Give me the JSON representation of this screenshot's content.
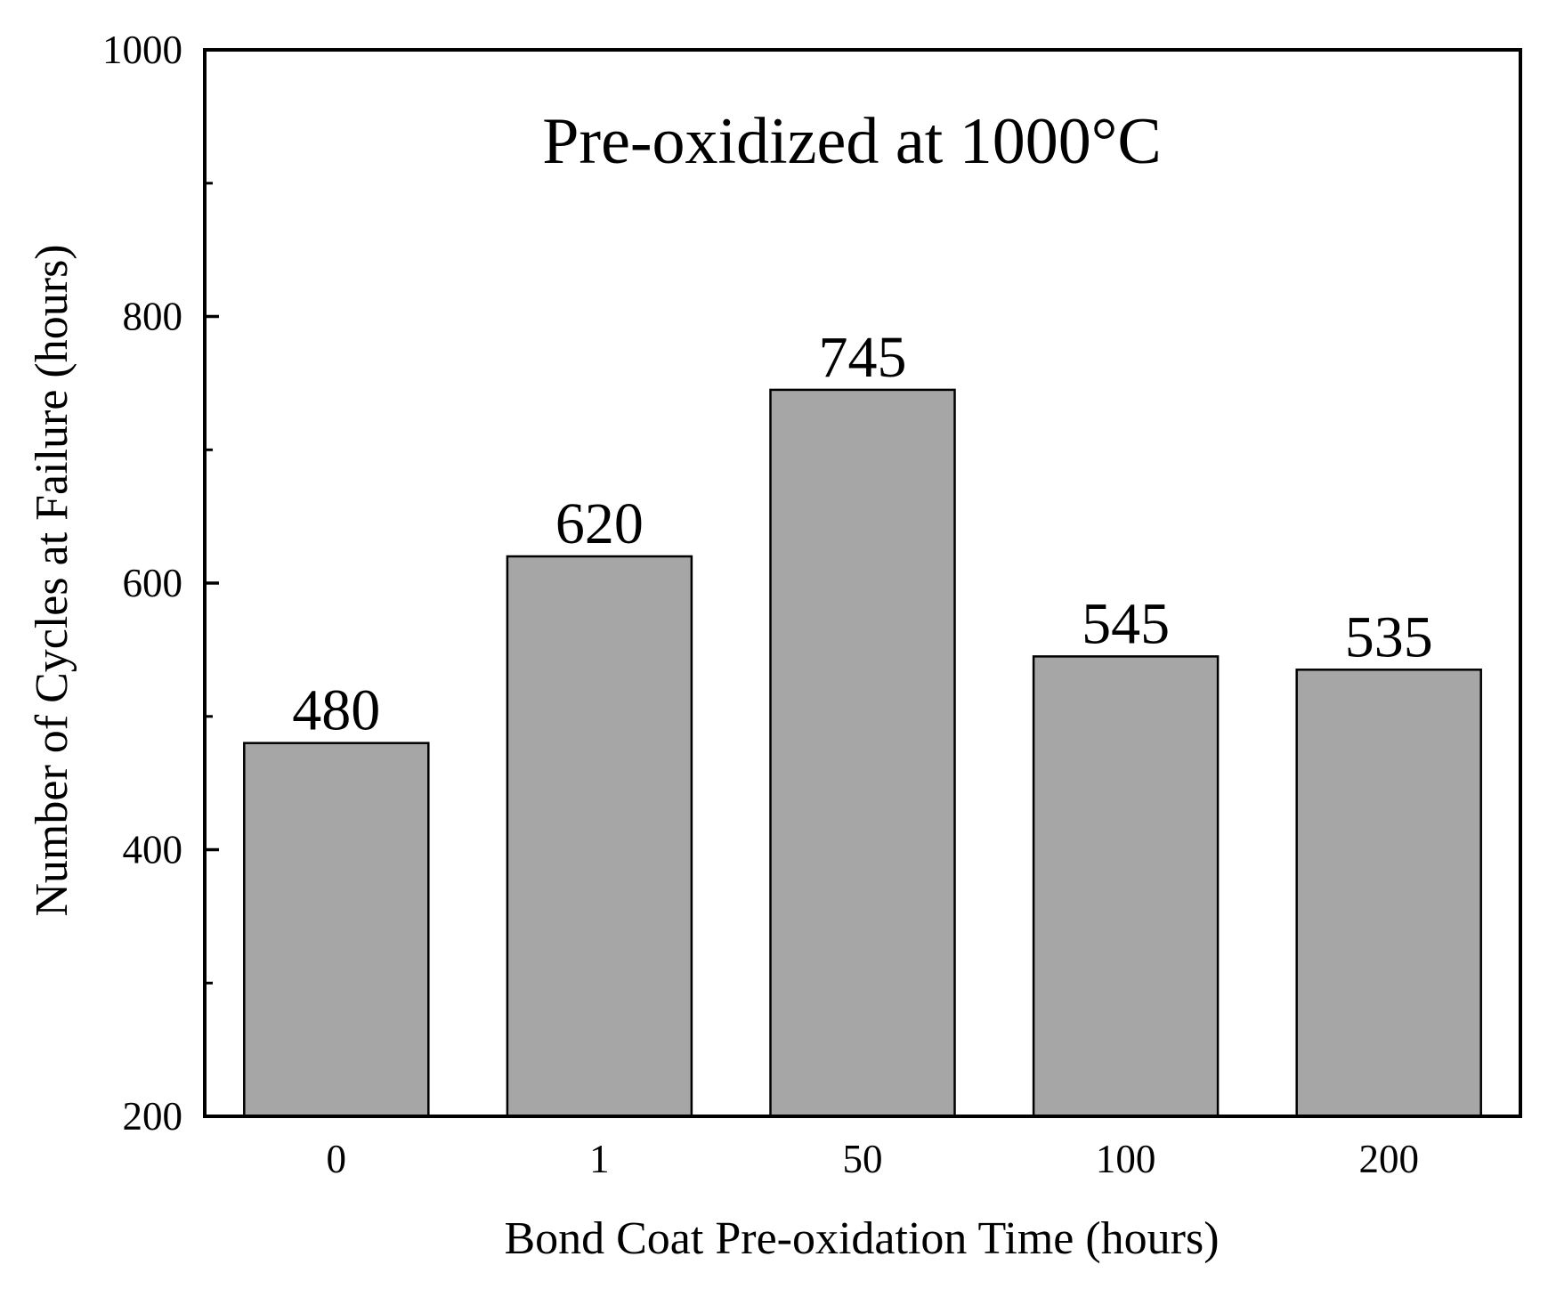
{
  "chart_data": {
    "type": "bar",
    "title": "Pre-oxidized at 1000°C",
    "xlabel": "Bond Coat Pre-oxidation Time (hours)",
    "ylabel": "Number of Cycles at Failure (hours)",
    "categories": [
      "0",
      "1",
      "50",
      "100",
      "200"
    ],
    "values": [
      480,
      620,
      745,
      545,
      535
    ],
    "data_labels": [
      "480",
      "620",
      "745",
      "545",
      "535"
    ],
    "ylim": [
      200,
      1000
    ],
    "yticks_major": [
      200,
      400,
      600,
      800,
      1000
    ],
    "ytick_labels": [
      "200",
      "400",
      "600",
      "800",
      "1000"
    ],
    "yticks_minor": [
      300,
      500,
      700,
      900
    ],
    "bar_color": "#a6a6a6",
    "edge_color": "#000000",
    "grid": false,
    "legend": "none"
  }
}
